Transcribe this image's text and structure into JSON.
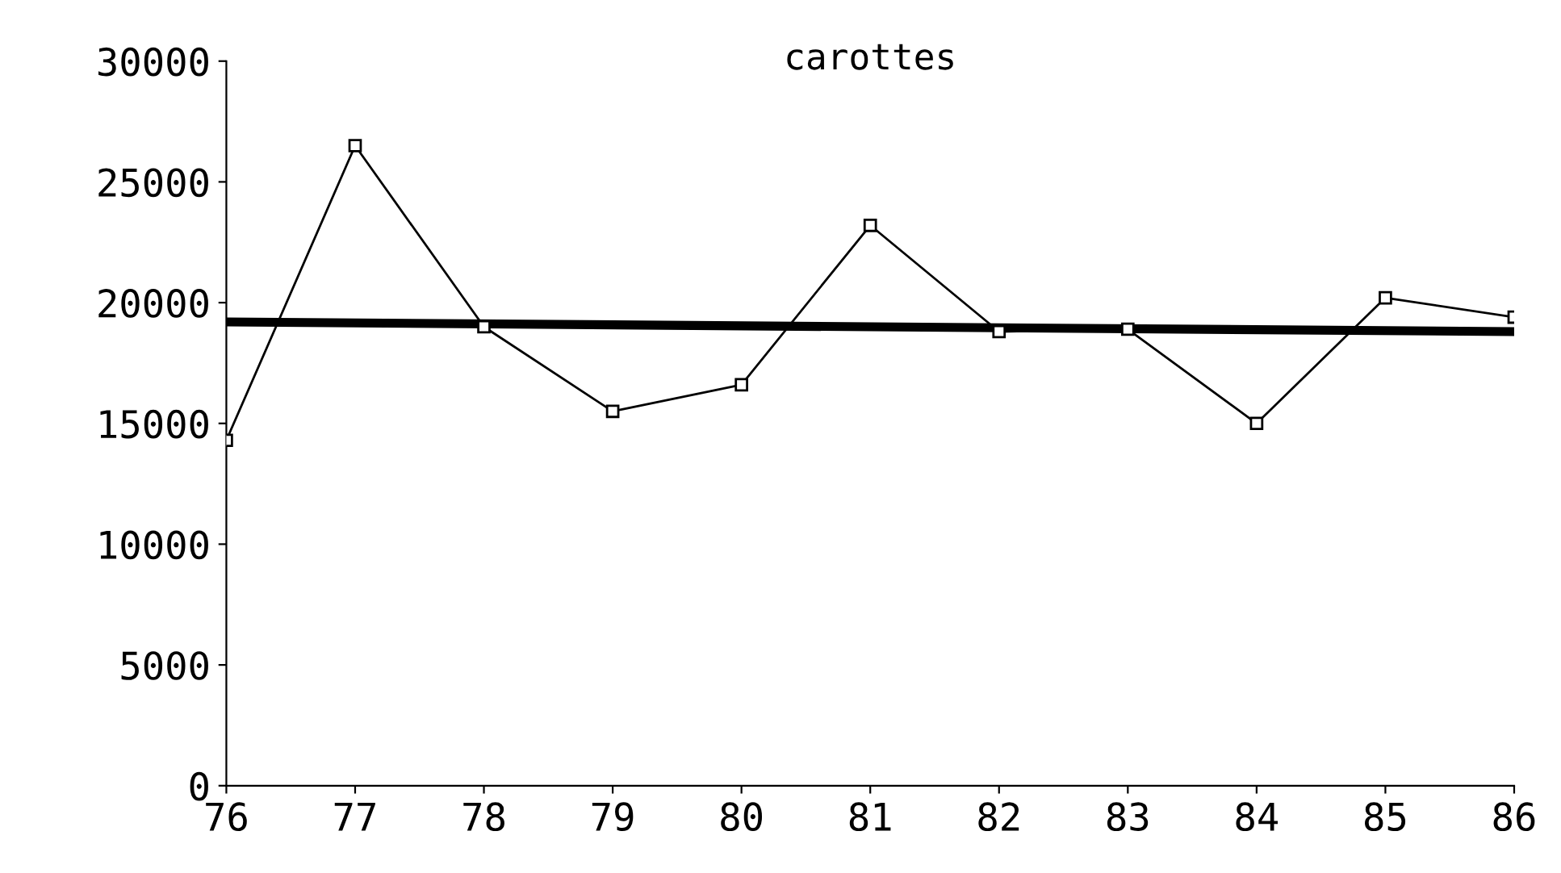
{
  "chart_data": {
    "type": "line",
    "title": "carottes",
    "x": [
      76,
      77,
      78,
      79,
      80,
      81,
      82,
      83,
      84,
      85,
      86
    ],
    "series": [
      {
        "color": "#000000",
        "marker": "square",
        "values": [
          14300,
          26500,
          19000,
          15500,
          16600,
          23200,
          18800,
          18900,
          15000,
          20200,
          19400
        ]
      },
      {
        "type": "line",
        "color": "#000000",
        "marker": "none",
        "x": [
          76,
          86
        ],
        "values": [
          19200,
          18800
        ]
      }
    ],
    "xlim": [
      76,
      86
    ],
    "xticks": [
      76,
      77,
      78,
      79,
      80,
      81,
      82,
      83,
      84,
      85,
      86
    ],
    "ylim": [
      0,
      30000
    ],
    "yticks": [
      0,
      5000,
      10000,
      15000,
      20000,
      25000,
      30000
    ],
    "grid": false,
    "legend": false
  }
}
